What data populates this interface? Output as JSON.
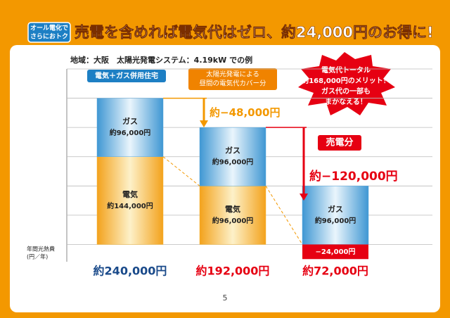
{
  "chart_data": {
    "type": "stacked_bar",
    "badge": [
      "オール電化で",
      "さらにおトク"
    ],
    "title": "売電を含めれば電気代はゼロ、約24,000円のお得に!",
    "subtitle": "地域：大阪　太陽光発電システム：4.19kW での例",
    "house_label": "電気＋ガス併用住宅",
    "cover_label": [
      "太陽光発電による",
      "昼間の電気代カバー分"
    ],
    "callout": [
      "電気代トータル",
      "約168,000円のメリット！",
      "ガス代の一部も",
      "まかなえる！"
    ],
    "y_label": [
      "年間光熱費",
      "(円／年)"
    ],
    "categories": [
      "約240,000円",
      "約192,000円",
      "約72,000円"
    ],
    "series": [
      {
        "name": "電気",
        "color": "#f5b83d",
        "values": [
          144000,
          96000,
          null
        ],
        "value_labels": [
          "約144,000円",
          "約96,000円",
          null
        ]
      },
      {
        "name": "ガス",
        "color": "#5aa8dc",
        "values": [
          96000,
          96000,
          96000
        ],
        "value_labels": [
          "約96,000円",
          "約96,000円",
          "約96,000円"
        ]
      },
      {
        "name": "売電分",
        "color": "#e60012",
        "values": [
          null,
          null,
          -24000
        ],
        "value_labels": [
          null,
          null,
          "−24,000円"
        ]
      }
    ],
    "differences": [
      {
        "value": -48000,
        "label": "約−48,000円"
      },
      {
        "value": -120000,
        "label": "約−120,000円"
      }
    ],
    "ylim": [
      -26000,
      288000
    ],
    "yticks": [
      0,
      48000,
      96000,
      144000,
      192000,
      240000,
      288000
    ],
    "grid": true,
    "page_number": "5"
  }
}
